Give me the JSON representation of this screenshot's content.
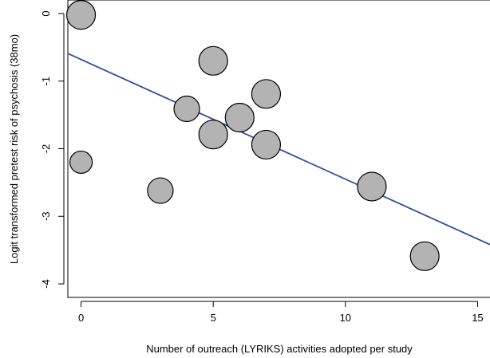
{
  "chart_data": {
    "type": "scatter",
    "xlabel": "Number of outreach (LYRIKS) activities adopted per study",
    "ylabel": "Logit transformed pretest risk of psychosis (38mo)",
    "xlim": [
      -0.5,
      15.5
    ],
    "ylim": [
      -4.2,
      0.2
    ],
    "xticks": [
      0,
      5,
      10,
      15
    ],
    "yticks": [
      0,
      -1,
      -2,
      -3,
      -4
    ],
    "grid": false,
    "points": [
      {
        "x": 0,
        "y": -0.02,
        "weight": "large"
      },
      {
        "x": 0,
        "y": -2.2,
        "weight": "small"
      },
      {
        "x": 3,
        "y": -2.62,
        "weight": "medium"
      },
      {
        "x": 4,
        "y": -1.41,
        "weight": "medium"
      },
      {
        "x": 5,
        "y": -0.7,
        "weight": "large"
      },
      {
        "x": 5,
        "y": -1.79,
        "weight": "large"
      },
      {
        "x": 6,
        "y": -1.54,
        "weight": "large"
      },
      {
        "x": 7,
        "y": -1.19,
        "weight": "large"
      },
      {
        "x": 7,
        "y": -1.94,
        "weight": "large"
      },
      {
        "x": 11,
        "y": -2.56,
        "weight": "large"
      },
      {
        "x": 13,
        "y": -3.59,
        "weight": "large"
      }
    ],
    "regression_line": {
      "intercept": -0.68,
      "slope": -0.177,
      "color": "#2e4f9e"
    },
    "marker_fill": "#b3b3b3",
    "marker_stroke": "#000000"
  }
}
